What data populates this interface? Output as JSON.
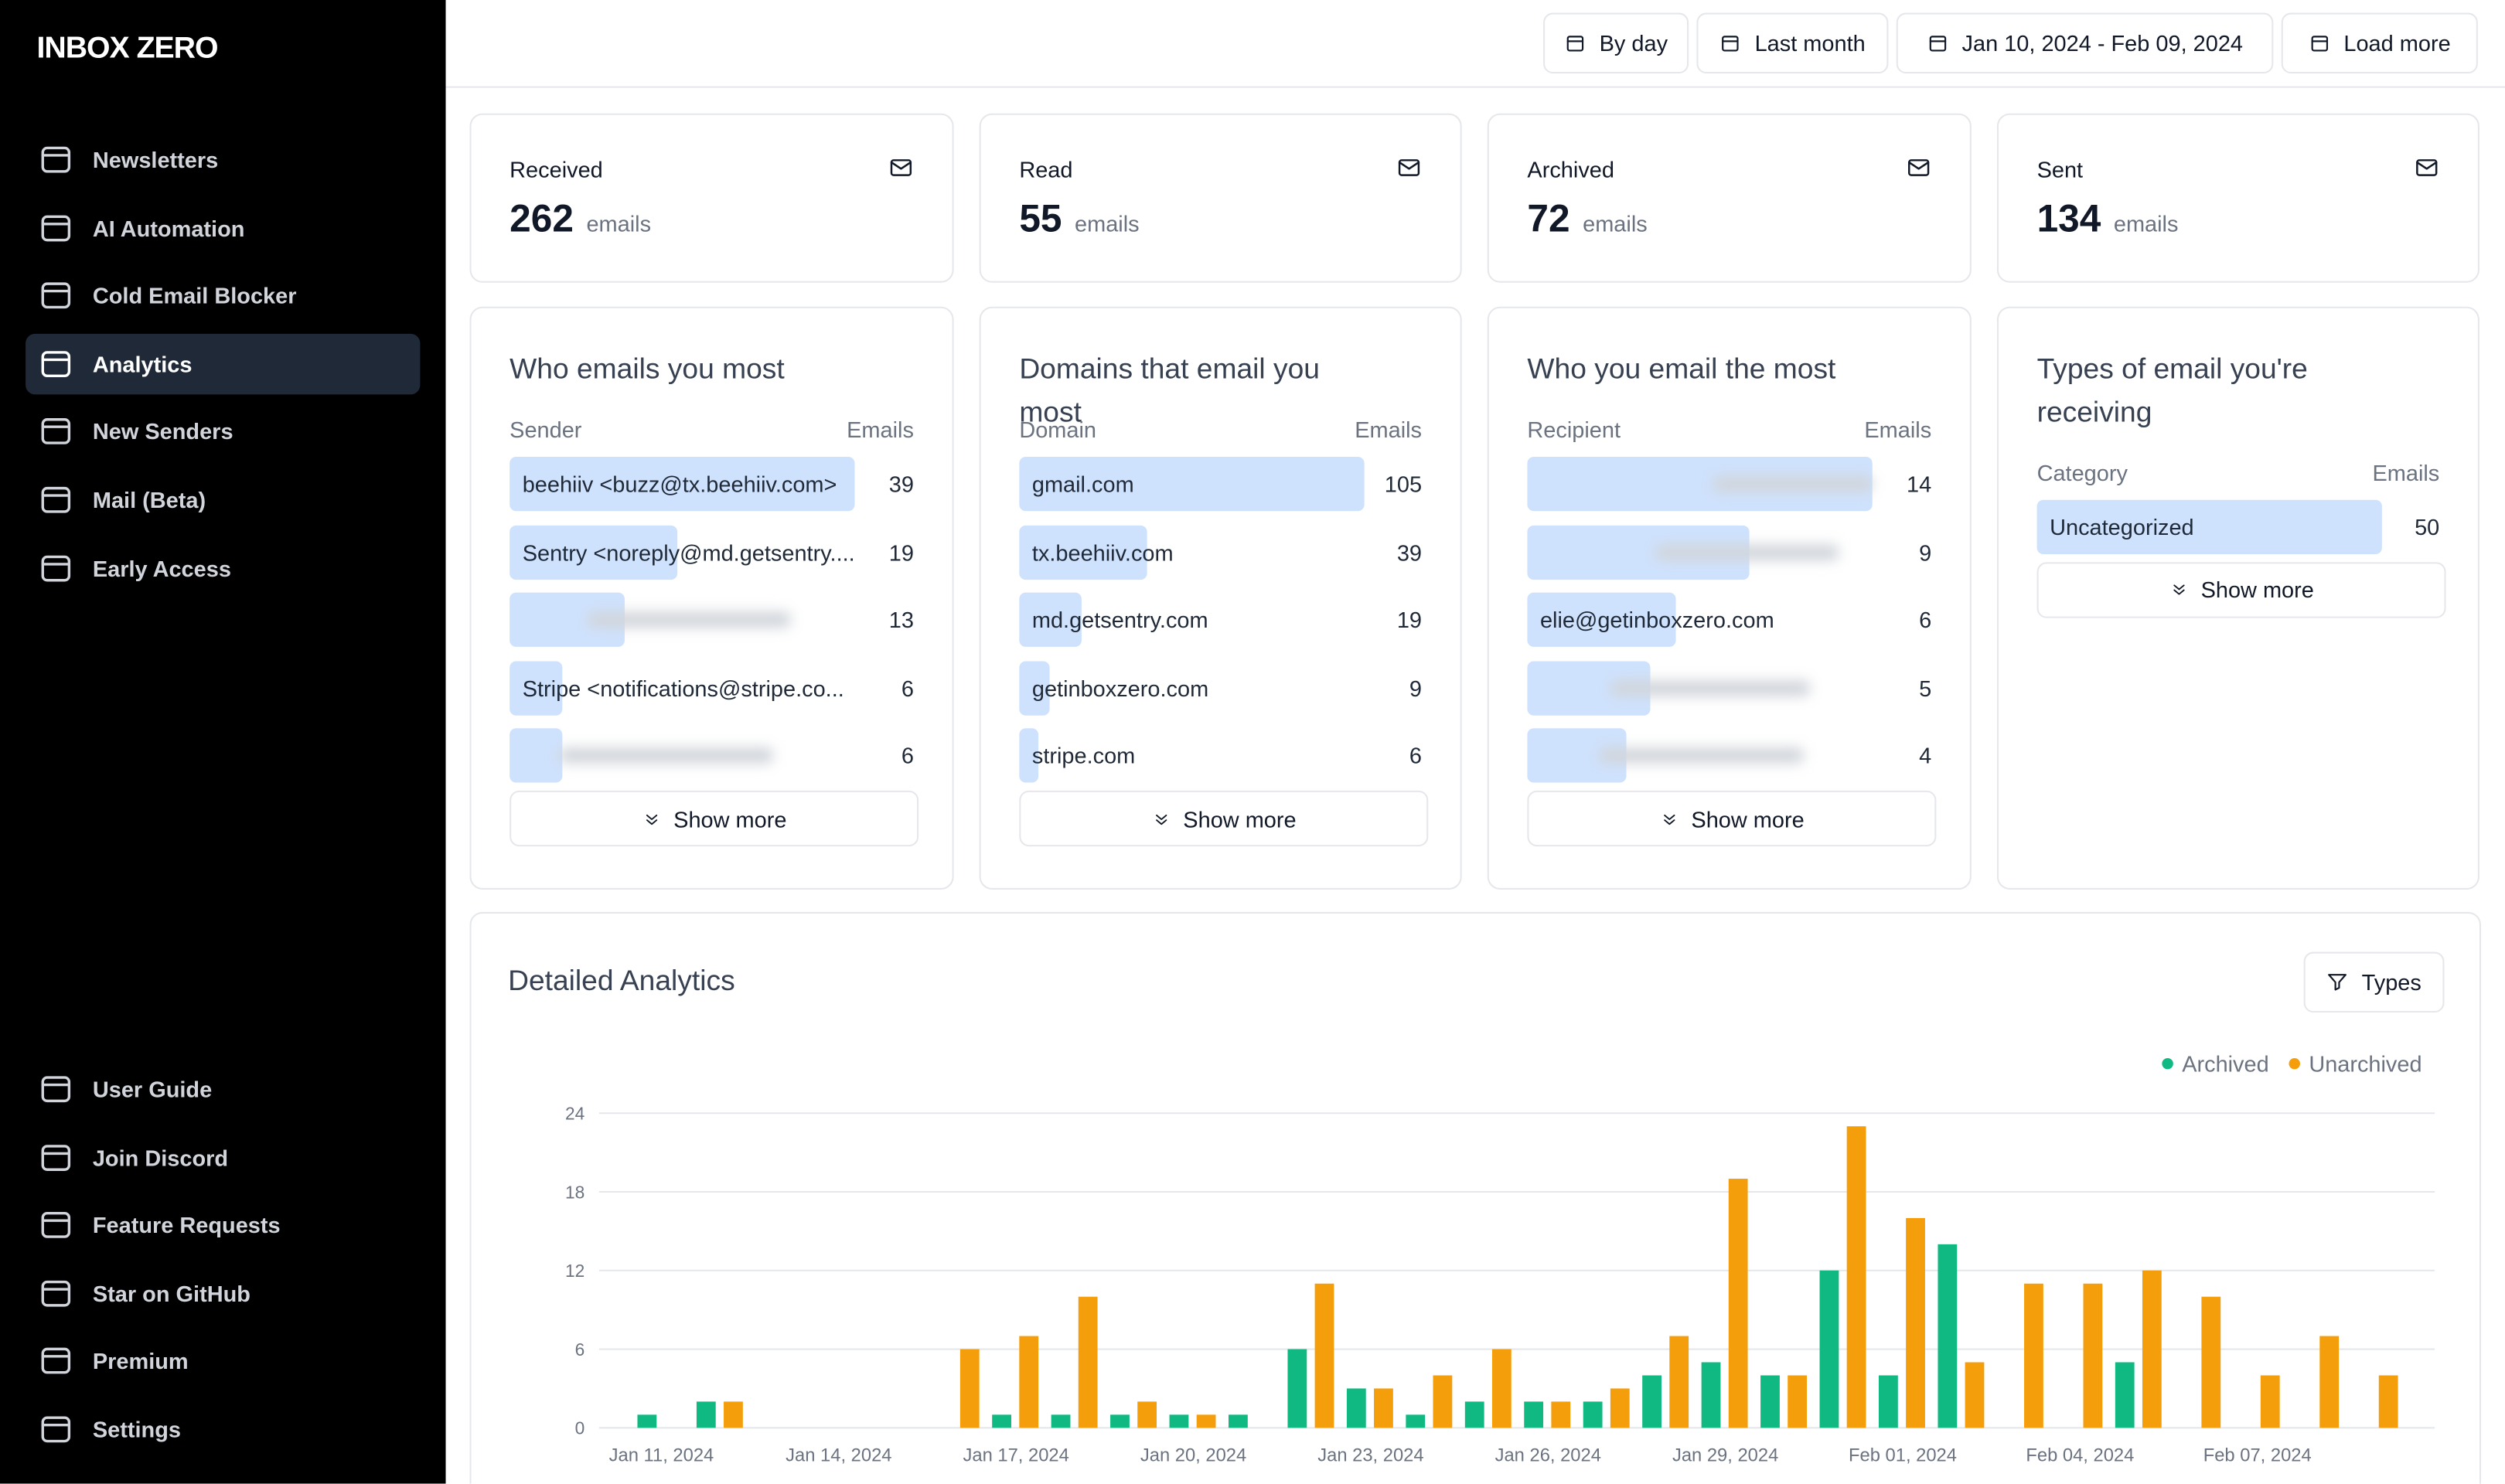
{
  "sidebar": {
    "logo": "INBOX ZERO",
    "nav": [
      "Newsletters",
      "AI Automation",
      "Cold Email Blocker",
      "Analytics",
      "New Senders",
      "Mail (Beta)",
      "Early Access"
    ],
    "active": "Analytics",
    "footer_nav": [
      "User Guide",
      "Join Discord",
      "Feature Requests",
      "Star on GitHub",
      "Premium",
      "Settings"
    ]
  },
  "toolbar": {
    "buttons": [
      "By day",
      "Last month",
      "Jan 10, 2024 - Feb 09, 2024",
      "Load more"
    ]
  },
  "stats": [
    {
      "label": "Received",
      "value": 262,
      "unit": "emails"
    },
    {
      "label": "Read",
      "value": 55,
      "unit": "emails"
    },
    {
      "label": "Archived",
      "value": 72,
      "unit": "emails"
    },
    {
      "label": "Sent",
      "value": 134,
      "unit": "emails"
    }
  ],
  "lists": [
    {
      "title": "Who emails you most",
      "column_label": "Sender",
      "column_value": "Emails",
      "rows": [
        {
          "label": "beehiiv <buzz@tx.beehiiv.com>",
          "count": 39
        },
        {
          "label": "Sentry <noreply@md.getsentry....",
          "count": 19
        },
        {
          "count": 13
        },
        {
          "label": "Stripe <notifications@stripe.co...",
          "count": 6
        },
        {
          "count": 6
        }
      ],
      "button": "Show more"
    },
    {
      "title": "Domains that email you most",
      "column_label": "Domain",
      "column_value": "Emails",
      "rows": [
        {
          "label": "gmail.com",
          "count": 105
        },
        {
          "label": "tx.beehiiv.com",
          "count": 39
        },
        {
          "label": "md.getsentry.com",
          "count": 19
        },
        {
          "label": "getinboxzero.com",
          "count": 9
        },
        {
          "label": "stripe.com",
          "count": 6
        }
      ],
      "button": "Show more"
    },
    {
      "title": "Who you email the most",
      "column_label": "Recipient",
      "column_value": "Emails",
      "rows": [
        {
          "count": 14
        },
        {
          "count": 9
        },
        {
          "label": "elie@getinboxzero.com",
          "count": 6
        },
        {
          "count": 5
        },
        {
          "count": 4
        }
      ],
      "button": "Show more"
    },
    {
      "title": "Types of email you're receiving",
      "column_label": "Category",
      "column_value": "Emails",
      "rows": [
        {
          "label": "Uncategorized",
          "count": 50
        }
      ],
      "button": "Show more"
    }
  ],
  "detailed_analytics": {
    "title": "Detailed Analytics",
    "filter_button": "Types",
    "chart": {
      "type": "bar",
      "legend": "top-right",
      "grid": true,
      "categories": [
        "Jan 11, 2024",
        null,
        null,
        "Jan 14, 2024",
        null,
        null,
        "Jan 17, 2024",
        null,
        null,
        "Jan 20, 2024",
        null,
        null,
        "Jan 23, 2024",
        null,
        null,
        "Jan 26, 2024",
        null,
        null,
        "Jan 29, 2024",
        null,
        null,
        "Feb 01, 2024",
        null,
        null,
        "Feb 04, 2024",
        null,
        null,
        "Feb 07, 2024",
        null,
        null
      ],
      "series": [
        {
          "name": "Archived",
          "color": "#10b981",
          "values": [
            1,
            2,
            0,
            0,
            0,
            0,
            1,
            1,
            1,
            1,
            1,
            6,
            3,
            1,
            2,
            2,
            2,
            4,
            5,
            4,
            12,
            4,
            14,
            0,
            0,
            5,
            0,
            0,
            0,
            0
          ]
        },
        {
          "name": "Unarchived",
          "color": "#f59e0b",
          "values": [
            0,
            2,
            0,
            0,
            0,
            6,
            7,
            10,
            2,
            1,
            0,
            11,
            3,
            4,
            6,
            2,
            3,
            7,
            19,
            4,
            23,
            16,
            5,
            11,
            11,
            12,
            10,
            4,
            7,
            4
          ]
        }
      ],
      "ylim": [
        0,
        24
      ],
      "yticks": [
        0,
        6,
        12,
        18,
        24
      ]
    }
  }
}
